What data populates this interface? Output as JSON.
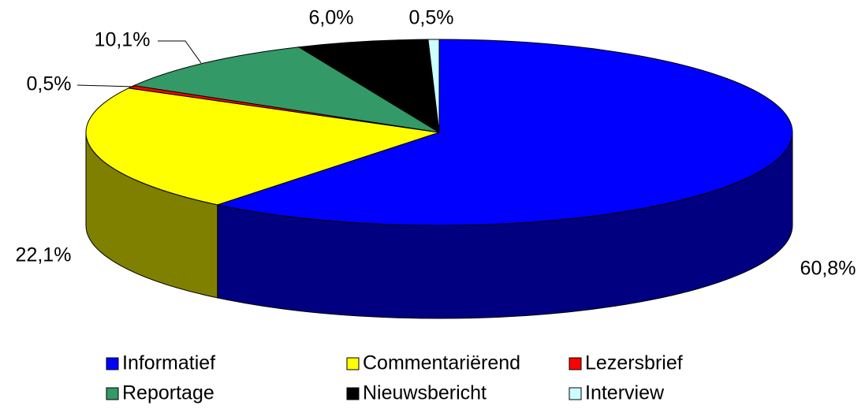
{
  "chart_data": {
    "type": "pie",
    "categories": [
      "Informatief",
      "Commentariërend",
      "Lezersbrief",
      "Reportage",
      "Nieuwsbericht",
      "Interview"
    ],
    "values": [
      60.8,
      22.1,
      0.5,
      10.1,
      6.0,
      0.5
    ],
    "value_labels": [
      "60,8%",
      "22,1%",
      "0,5%",
      "10,1%",
      "6,0%",
      "0,5%"
    ],
    "colors": [
      "#0000ff",
      "#ffff00",
      "#ff0000",
      "#339966",
      "#000000",
      "#ccffff"
    ]
  }
}
